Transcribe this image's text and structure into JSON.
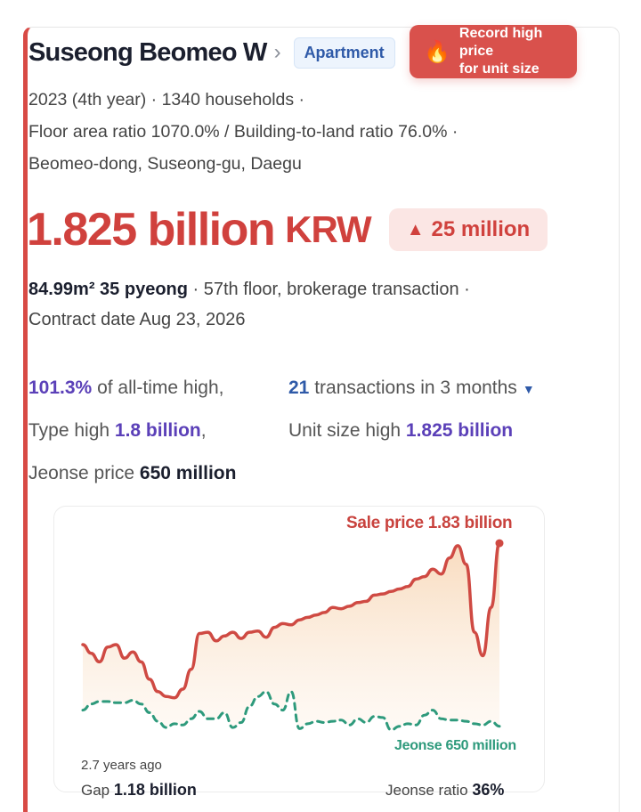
{
  "header": {
    "title": "Suseong Beomeo W",
    "chevron": "›",
    "tag": "Apartment",
    "record_badge": {
      "icon": "fire-icon",
      "line1": "Record high price",
      "line2": "for unit size"
    }
  },
  "meta": {
    "line1": "2023 (4th year) · 1340 households ·",
    "line2": "Floor area ratio 1070.0% / Building-to-land ratio 76.0% ·",
    "line3": "Beomeo-dong, Suseong-gu, Daegu"
  },
  "price": {
    "amount": "1.825 billion",
    "currency": "KRW",
    "delta_icon": "▲",
    "delta": "25 million"
  },
  "detail": {
    "size": "84.99m² 35 pyeong",
    "floor": " · 57th floor, brokerage transaction ·",
    "contract": "Contract date Aug 23, 2026"
  },
  "stats": {
    "ath_pct": "101.3%",
    "ath_label": " of all-time high,",
    "tx_count": "21",
    "tx_label": " transactions in 3 months",
    "type_high_label": "Type high ",
    "type_high_value": "1.8 billion",
    "type_high_comma": ",",
    "unit_high_label": "Unit size high ",
    "unit_high_value": "1.825 billion",
    "jeonse_label": "Jeonse price ",
    "jeonse_value": "650 million"
  },
  "chart_labels": {
    "sale": "Sale price 1.83 billion",
    "jeonse": "Jeonse 650 million",
    "period": "2.7 years ago",
    "gap_label": "Gap ",
    "gap_value": "1.18 billion",
    "ratio_label": "Jeonse ratio ",
    "ratio_value": "36%"
  },
  "chart_data": {
    "type": "area",
    "xlabel": "",
    "ylabel": "",
    "series": [
      {
        "name": "Sale price",
        "color": "#cf4a43",
        "values": [
          0.9,
          0.83,
          0.76,
          0.88,
          0.9,
          0.79,
          0.84,
          0.76,
          0.62,
          0.52,
          0.48,
          0.47,
          0.54,
          0.7,
          0.99,
          1.0,
          0.93,
          0.97,
          1.0,
          0.95,
          1.0,
          1.01,
          0.96,
          1.04,
          1.07,
          1.06,
          1.1,
          1.12,
          1.14,
          1.16,
          1.2,
          1.19,
          1.21,
          1.24,
          1.25,
          1.3,
          1.31,
          1.33,
          1.35,
          1.37,
          1.43,
          1.45,
          1.51,
          1.47,
          1.6,
          1.7,
          1.55,
          1.0,
          0.81,
          1.2,
          1.72
        ]
      },
      {
        "name": "Jeonse",
        "color": "#2e9a7c",
        "values": [
          0.37,
          0.42,
          0.44,
          0.44,
          0.43,
          0.43,
          0.45,
          0.42,
          0.35,
          0.28,
          0.23,
          0.26,
          0.25,
          0.3,
          0.36,
          0.3,
          0.3,
          0.35,
          0.23,
          0.27,
          0.4,
          0.48,
          0.52,
          0.42,
          0.37,
          0.52,
          0.22,
          0.26,
          0.28,
          0.27,
          0.28,
          0.29,
          0.25,
          0.3,
          0.27,
          0.32,
          0.31,
          0.21,
          0.24,
          0.26,
          0.25,
          0.33,
          0.37,
          0.3,
          0.29,
          0.29,
          0.28,
          0.26,
          0.25,
          0.28,
          0.24
        ]
      }
    ]
  }
}
